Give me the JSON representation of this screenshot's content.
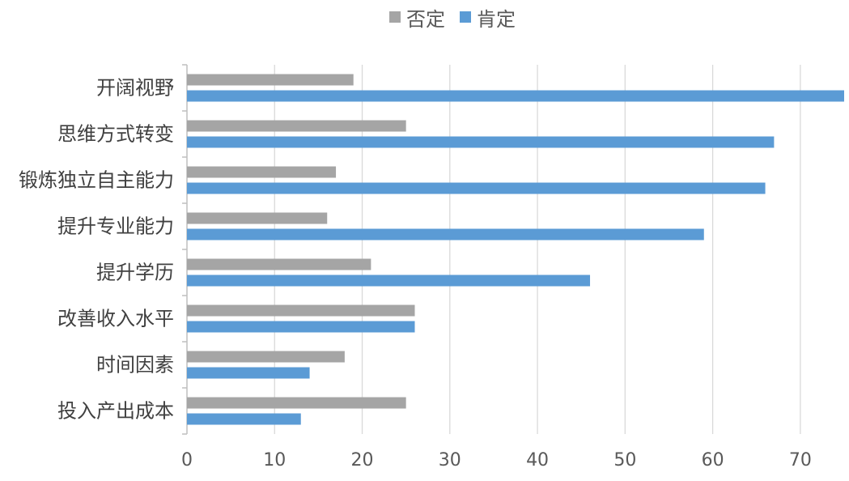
{
  "chart_data": {
    "type": "bar",
    "orientation": "horizontal",
    "title": "",
    "xlabel": "",
    "ylabel": "",
    "categories": [
      "开阔视野",
      "思维方式转变",
      "锻炼独立自主能力",
      "提升专业能力",
      "提升学历",
      "改善收入水平",
      "时间因素",
      "投入产出成本"
    ],
    "series": [
      {
        "name": "否定",
        "color": "#A5A5A5",
        "values": [
          19,
          25,
          17,
          16,
          21,
          26,
          18,
          25
        ]
      },
      {
        "name": "肯定",
        "color": "#5B9BD5",
        "values": [
          75,
          67,
          66,
          59,
          46,
          26,
          14,
          13
        ]
      }
    ],
    "xlim": [
      0,
      75
    ],
    "xticks": [
      0,
      10,
      20,
      30,
      40,
      50,
      60,
      70
    ],
    "grid": true,
    "legend_position": "top"
  }
}
